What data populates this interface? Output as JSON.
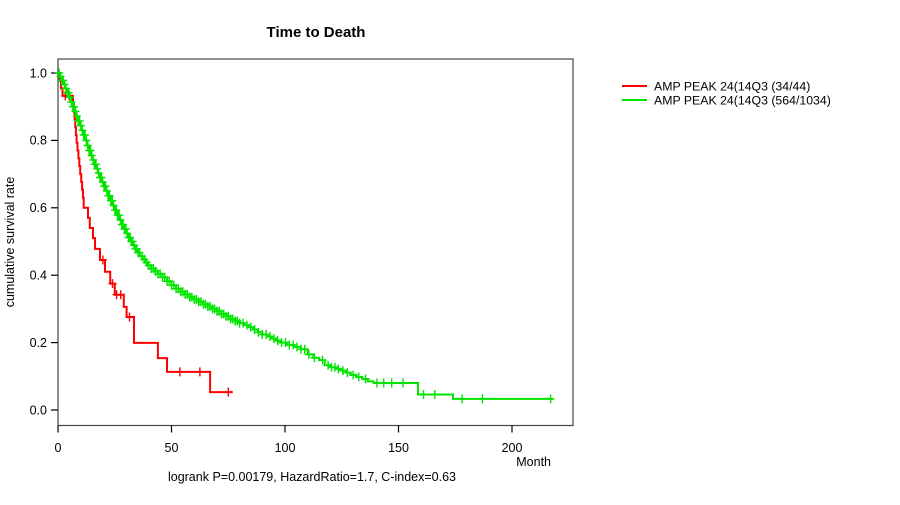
{
  "title": "Time to Death",
  "caption": "logrank P=0.00179, HazardRatio=1.7, C-index=0.63",
  "axes": {
    "x_label": "Month",
    "y_label": "cumulative survival rate",
    "x_ticks": [
      0,
      50,
      100,
      150,
      200
    ],
    "y_ticks": [
      0.0,
      0.2,
      0.4,
      0.6,
      0.8,
      1.0
    ]
  },
  "chart_data": {
    "type": "line",
    "subtype": "kaplan-meier-step-curves",
    "title": "Time to Death",
    "xlabel": "Month",
    "ylabel": "cumulative survival rate",
    "xlim": [
      0,
      227
    ],
    "ylim": [
      0,
      1
    ],
    "grid": false,
    "legend_position": "right-outside",
    "annotation": "logrank P=0.00179, HazardRatio=1.7, C-index=0.63",
    "series": [
      {
        "name": "AMP PEAK 24(14Q3 (34/44)",
        "color": "#ff0000",
        "end_month": 77,
        "steps": [
          [
            0,
            1.0
          ],
          [
            0.7,
            0.977
          ],
          [
            1.3,
            0.955
          ],
          [
            2.0,
            0.932
          ],
          [
            6.6,
            0.909
          ],
          [
            7.0,
            0.885
          ],
          [
            7.3,
            0.862
          ],
          [
            7.6,
            0.839
          ],
          [
            7.9,
            0.816
          ],
          [
            8.2,
            0.793
          ],
          [
            8.6,
            0.77
          ],
          [
            9.0,
            0.747
          ],
          [
            9.4,
            0.724
          ],
          [
            9.8,
            0.7
          ],
          [
            10.2,
            0.677
          ],
          [
            10.6,
            0.654
          ],
          [
            11.0,
            0.63
          ],
          [
            11.3,
            0.6
          ],
          [
            13.2,
            0.57
          ],
          [
            14.0,
            0.54
          ],
          [
            15.4,
            0.51
          ],
          [
            16.3,
            0.478
          ],
          [
            18.5,
            0.445
          ],
          [
            20.7,
            0.41
          ],
          [
            23.0,
            0.375
          ],
          [
            25.0,
            0.342
          ],
          [
            29.0,
            0.306
          ],
          [
            30.2,
            0.276
          ],
          [
            33.5,
            0.199
          ],
          [
            44.0,
            0.154
          ],
          [
            48.0,
            0.113
          ],
          [
            67.0,
            0.053
          ]
        ],
        "censor_months": [
          3.2,
          5.0,
          19.8,
          24.0,
          25.8,
          27.6,
          31.5,
          53.7,
          62.5,
          75.0
        ]
      },
      {
        "name": "AMP PEAK 24(14Q3 (564/1034)",
        "color": "#00e400",
        "end_month": 218,
        "steps": [
          [
            0,
            1.0
          ],
          [
            0.8,
            0.99
          ],
          [
            1.6,
            0.978
          ],
          [
            2.4,
            0.966
          ],
          [
            3.2,
            0.954
          ],
          [
            4.0,
            0.941
          ],
          [
            4.8,
            0.928
          ],
          [
            5.6,
            0.914
          ],
          [
            6.4,
            0.9
          ],
          [
            7.2,
            0.886
          ],
          [
            8.0,
            0.872
          ],
          [
            8.8,
            0.858
          ],
          [
            9.6,
            0.844
          ],
          [
            10.4,
            0.83
          ],
          [
            11.2,
            0.816
          ],
          [
            12.0,
            0.8
          ],
          [
            12.8,
            0.785
          ],
          [
            13.6,
            0.77
          ],
          [
            14.4,
            0.755
          ],
          [
            15.2,
            0.742
          ],
          [
            16.0,
            0.729
          ],
          [
            16.8,
            0.716
          ],
          [
            17.6,
            0.703
          ],
          [
            18.4,
            0.69
          ],
          [
            19.2,
            0.677
          ],
          [
            20.0,
            0.664
          ],
          [
            21.0,
            0.65
          ],
          [
            22.0,
            0.636
          ],
          [
            23.0,
            0.621
          ],
          [
            24.0,
            0.607
          ],
          [
            25.0,
            0.593
          ],
          [
            26.0,
            0.578
          ],
          [
            27.0,
            0.564
          ],
          [
            28.0,
            0.55
          ],
          [
            29.0,
            0.537
          ],
          [
            30.0,
            0.524
          ],
          [
            31.0,
            0.512
          ],
          [
            32.0,
            0.5
          ],
          [
            33.0,
            0.489
          ],
          [
            34.0,
            0.478
          ],
          [
            35.0,
            0.467
          ],
          [
            36.0,
            0.456
          ],
          [
            37.2,
            0.447
          ],
          [
            38.4,
            0.438
          ],
          [
            39.6,
            0.429
          ],
          [
            41.0,
            0.42
          ],
          [
            42.5,
            0.412
          ],
          [
            44.0,
            0.404
          ],
          [
            46.0,
            0.394
          ],
          [
            48.0,
            0.382
          ],
          [
            50.0,
            0.37
          ],
          [
            52.0,
            0.36
          ],
          [
            54.0,
            0.351
          ],
          [
            56.0,
            0.343
          ],
          [
            58.0,
            0.335
          ],
          [
            60.0,
            0.328
          ],
          [
            62.0,
            0.321
          ],
          [
            64.0,
            0.314
          ],
          [
            66.0,
            0.307
          ],
          [
            68.0,
            0.3
          ],
          [
            70.0,
            0.293
          ],
          [
            72.0,
            0.285
          ],
          [
            74.0,
            0.278
          ],
          [
            76.0,
            0.27
          ],
          [
            78.0,
            0.264
          ],
          [
            80.0,
            0.258
          ],
          [
            82.0,
            0.252
          ],
          [
            84.0,
            0.246
          ],
          [
            86.0,
            0.239
          ],
          [
            88.0,
            0.231
          ],
          [
            90.0,
            0.224
          ],
          [
            92.0,
            0.218
          ],
          [
            94.0,
            0.212
          ],
          [
            96.0,
            0.206
          ],
          [
            98.0,
            0.2
          ],
          [
            101.0,
            0.193
          ],
          [
            104.0,
            0.187
          ],
          [
            107.0,
            0.18
          ],
          [
            110.0,
            0.165
          ],
          [
            112.5,
            0.155
          ],
          [
            115.0,
            0.148
          ],
          [
            117.5,
            0.133
          ],
          [
            120.0,
            0.127
          ],
          [
            122.5,
            0.122
          ],
          [
            125.0,
            0.117
          ],
          [
            127.0,
            0.111
          ],
          [
            129.0,
            0.104
          ],
          [
            131.5,
            0.098
          ],
          [
            134.0,
            0.092
          ],
          [
            136.5,
            0.085
          ],
          [
            139.0,
            0.08
          ],
          [
            158.6,
            0.046
          ],
          [
            174.0,
            0.033
          ]
        ],
        "censor_months": [
          0.5,
          1.1,
          1.7,
          2.3,
          2.9,
          3.5,
          4.1,
          4.7,
          5.3,
          5.9,
          6.5,
          7.1,
          7.7,
          8.3,
          8.9,
          9.5,
          10.1,
          10.7,
          11.3,
          11.9,
          12.5,
          13.1,
          13.7,
          14.3,
          14.9,
          15.5,
          16.1,
          16.7,
          17.3,
          17.9,
          18.5,
          19.1,
          19.7,
          20.3,
          20.9,
          21.5,
          22.1,
          22.7,
          23.3,
          23.9,
          24.5,
          25.1,
          25.7,
          26.3,
          26.9,
          27.5,
          28.1,
          28.7,
          29.3,
          29.9,
          30.5,
          31.1,
          31.7,
          32.3,
          32.9,
          33.5,
          34.1,
          34.7,
          35.3,
          35.9,
          37,
          38,
          39,
          40,
          41,
          42,
          43,
          44,
          45,
          46,
          47,
          48,
          49,
          50,
          51,
          52,
          53,
          54,
          55,
          56,
          57,
          58,
          59,
          60,
          61,
          62,
          63,
          64,
          65,
          66,
          67,
          68,
          69,
          70,
          71,
          72,
          73,
          74,
          75,
          76,
          77,
          78,
          79,
          80,
          81.5,
          83.2,
          84.9,
          86.6,
          88.3,
          90,
          91.7,
          93.4,
          95.1,
          96.8,
          98.5,
          100.2,
          101.9,
          103.6,
          105.3,
          107,
          108.7,
          110.5,
          113,
          116.5,
          119,
          120.5,
          122,
          123.5,
          125.5,
          127.5,
          130,
          132.5,
          135.5,
          140.5,
          143.5,
          147,
          152,
          161,
          166,
          178,
          187,
          217
        ]
      }
    ]
  }
}
